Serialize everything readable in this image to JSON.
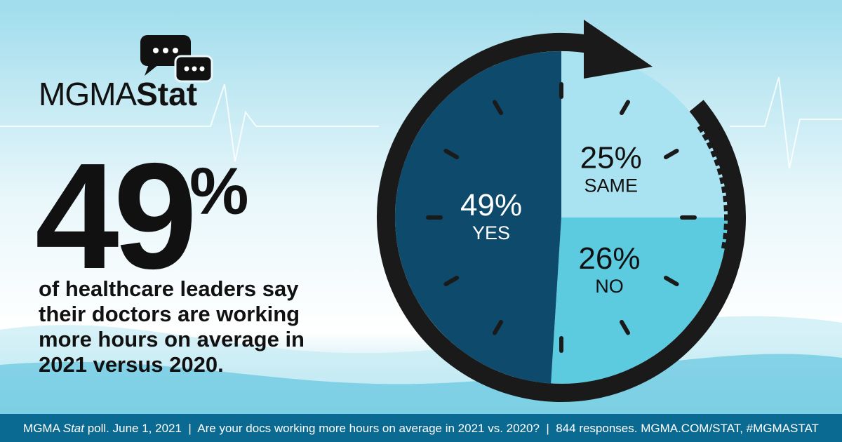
{
  "chart_data": {
    "type": "pie",
    "categories": [
      "SAME",
      "NO",
      "YES"
    ],
    "values": [
      25,
      26,
      49
    ],
    "value_labels": [
      "25%",
      "26%",
      "49%"
    ],
    "colors": [
      "#a9e2f0",
      "#5ccbe0",
      "#0d4a6b"
    ]
  },
  "logo": {
    "main": "MGMA",
    "bold": "Stat"
  },
  "headline": {
    "number": "49",
    "symbol": "%"
  },
  "description": [
    "of healthcare leaders say",
    "their doctors are working",
    "more hours on average in",
    "2021 versus 2020."
  ],
  "footer": {
    "prefix": "MGMA",
    "italic": "Stat",
    "rest": "poll. June 1, 2021  |  Are your docs working more hours on average in 2021 vs. 2020?  |  844 responses. MGMA.COM/STAT, #MGMASTAT"
  }
}
